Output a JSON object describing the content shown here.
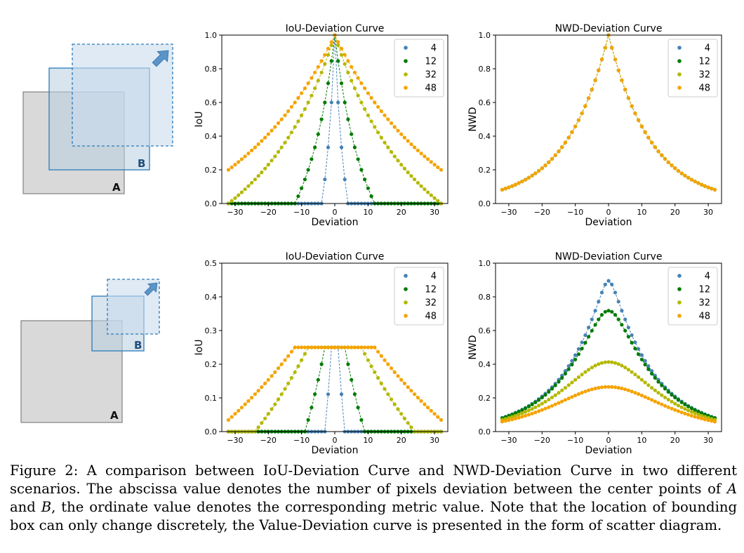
{
  "diagrams": [
    {
      "label_a": "A",
      "label_b": "B",
      "arrow_icon": "arrow-up-right-icon"
    },
    {
      "label_a": "A",
      "label_b": "B",
      "arrow_icon": "arrow-up-right-icon"
    }
  ],
  "colors": {
    "4": "#4682b4",
    "12": "#007a00",
    "32": "#b3b800",
    "48": "#f5a300"
  },
  "chart_data": [
    {
      "type": "scatter",
      "metric": "iou",
      "scenario": "equal",
      "title": "IoU-Deviation Curve",
      "xlabel": "Deviation",
      "ylabel": "IoU",
      "xlim": [
        -34,
        34
      ],
      "ylim": [
        0,
        1.0
      ],
      "xticks": [
        -30,
        -20,
        -10,
        0,
        10,
        20,
        30
      ],
      "yticks": [
        0.0,
        0.2,
        0.4,
        0.6,
        0.8,
        1.0
      ],
      "legend_position": "top-right",
      "series": [
        {
          "name": "4",
          "wa": 4,
          "wb": 4
        },
        {
          "name": "12",
          "wa": 12,
          "wb": 12
        },
        {
          "name": "32",
          "wa": 32,
          "wb": 32
        },
        {
          "name": "48",
          "wa": 48,
          "wb": 48
        }
      ]
    },
    {
      "type": "scatter",
      "metric": "nwd",
      "scenario": "equal",
      "title": "NWD-Deviation Curve",
      "xlabel": "Deviation",
      "ylabel": "NWD",
      "xlim": [
        -34,
        34
      ],
      "ylim": [
        0,
        1.0
      ],
      "xticks": [
        -30,
        -20,
        -10,
        0,
        10,
        20,
        30
      ],
      "yticks": [
        0.0,
        0.2,
        0.4,
        0.6,
        0.8,
        1.0
      ],
      "legend_position": "top-right",
      "series": [
        {
          "name": "4",
          "wa": 4,
          "wb": 4
        },
        {
          "name": "12",
          "wa": 12,
          "wb": 12
        },
        {
          "name": "32",
          "wa": 32,
          "wb": 32
        },
        {
          "name": "48",
          "wa": 48,
          "wb": 48
        }
      ]
    },
    {
      "type": "scatter",
      "metric": "iou",
      "scenario": "half",
      "title": "IoU-Deviation Curve",
      "xlabel": "Deviation",
      "ylabel": "IoU",
      "xlim": [
        -34,
        34
      ],
      "ylim": [
        0,
        0.5
      ],
      "xticks": [
        -30,
        -20,
        -10,
        0,
        10,
        20,
        30
      ],
      "yticks": [
        0.0,
        0.1,
        0.2,
        0.3,
        0.4,
        0.5
      ],
      "legend_position": "top-right",
      "series": [
        {
          "name": "4",
          "wa": 4,
          "wb": 2
        },
        {
          "name": "12",
          "wa": 12,
          "wb": 6
        },
        {
          "name": "32",
          "wa": 32,
          "wb": 16
        },
        {
          "name": "48",
          "wa": 48,
          "wb": 24
        }
      ]
    },
    {
      "type": "scatter",
      "metric": "nwd",
      "scenario": "half",
      "title": "NWD-Deviation Curve",
      "xlabel": "Deviation",
      "ylabel": "NWD",
      "xlim": [
        -34,
        34
      ],
      "ylim": [
        0,
        1.0
      ],
      "xticks": [
        -30,
        -20,
        -10,
        0,
        10,
        20,
        30
      ],
      "yticks": [
        0.0,
        0.2,
        0.4,
        0.6,
        0.8,
        1.0
      ],
      "legend_position": "top-right",
      "series": [
        {
          "name": "4",
          "wa": 4,
          "wb": 2
        },
        {
          "name": "12",
          "wa": 12,
          "wb": 6
        },
        {
          "name": "32",
          "wa": 32,
          "wb": 16
        },
        {
          "name": "48",
          "wa": 48,
          "wb": 24
        }
      ]
    }
  ],
  "caption": {
    "label": "Figure 2:",
    "p1": " A comparison between IoU-Deviation Curve and NWD-Deviation Curve in two different scenarios. The abscissa value denotes the number of pixels deviation between the center points of ",
    "var_a": "A",
    "p2": " and ",
    "var_b": "B",
    "p3": ", the ordinate value denotes the corresponding metric value. Note that the location of bounding box can only change discretely, the Value-Deviation curve is presented in the form of scatter diagram."
  }
}
